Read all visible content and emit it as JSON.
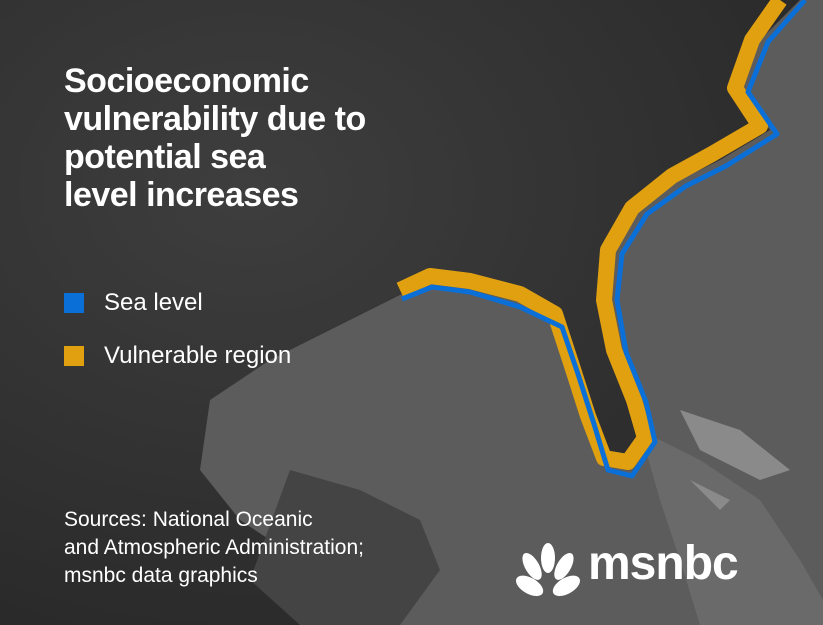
{
  "title": [
    "Socioeconomic",
    "vulnerability due to",
    "potential sea",
    "level increases"
  ],
  "legend": [
    {
      "label": "Sea level",
      "color": "#0b6fd8"
    },
    {
      "label": "Vulnerable region",
      "color": "#e0a010"
    }
  ],
  "sources": [
    "Sources:  National Oceanic",
    "and Atmospheric Administration;",
    "msnbc data graphics"
  ],
  "logo": "msnbc"
}
